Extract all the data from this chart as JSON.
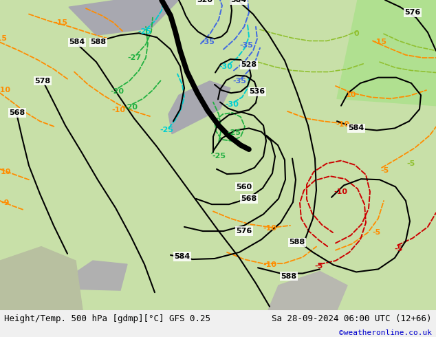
{
  "title_left": "Height/Temp. 500 hPa [gdmp][°C] GFS 0.25",
  "title_right": "Sa 28-09-2024 06:00 UTC (12+66)",
  "credit": "©weatheronline.co.uk",
  "bg_green": "#c8e6a0",
  "bg_gray": "#a8a8b0",
  "black": "#000000",
  "orange": "#ff8c00",
  "blue": "#4169e1",
  "cyan": "#00ced1",
  "green_c": "#20b040",
  "green_l": "#90c030",
  "red": "#cc0000",
  "title_fontsize": 9,
  "credit_fontsize": 8,
  "credit_color": "#0000cd"
}
